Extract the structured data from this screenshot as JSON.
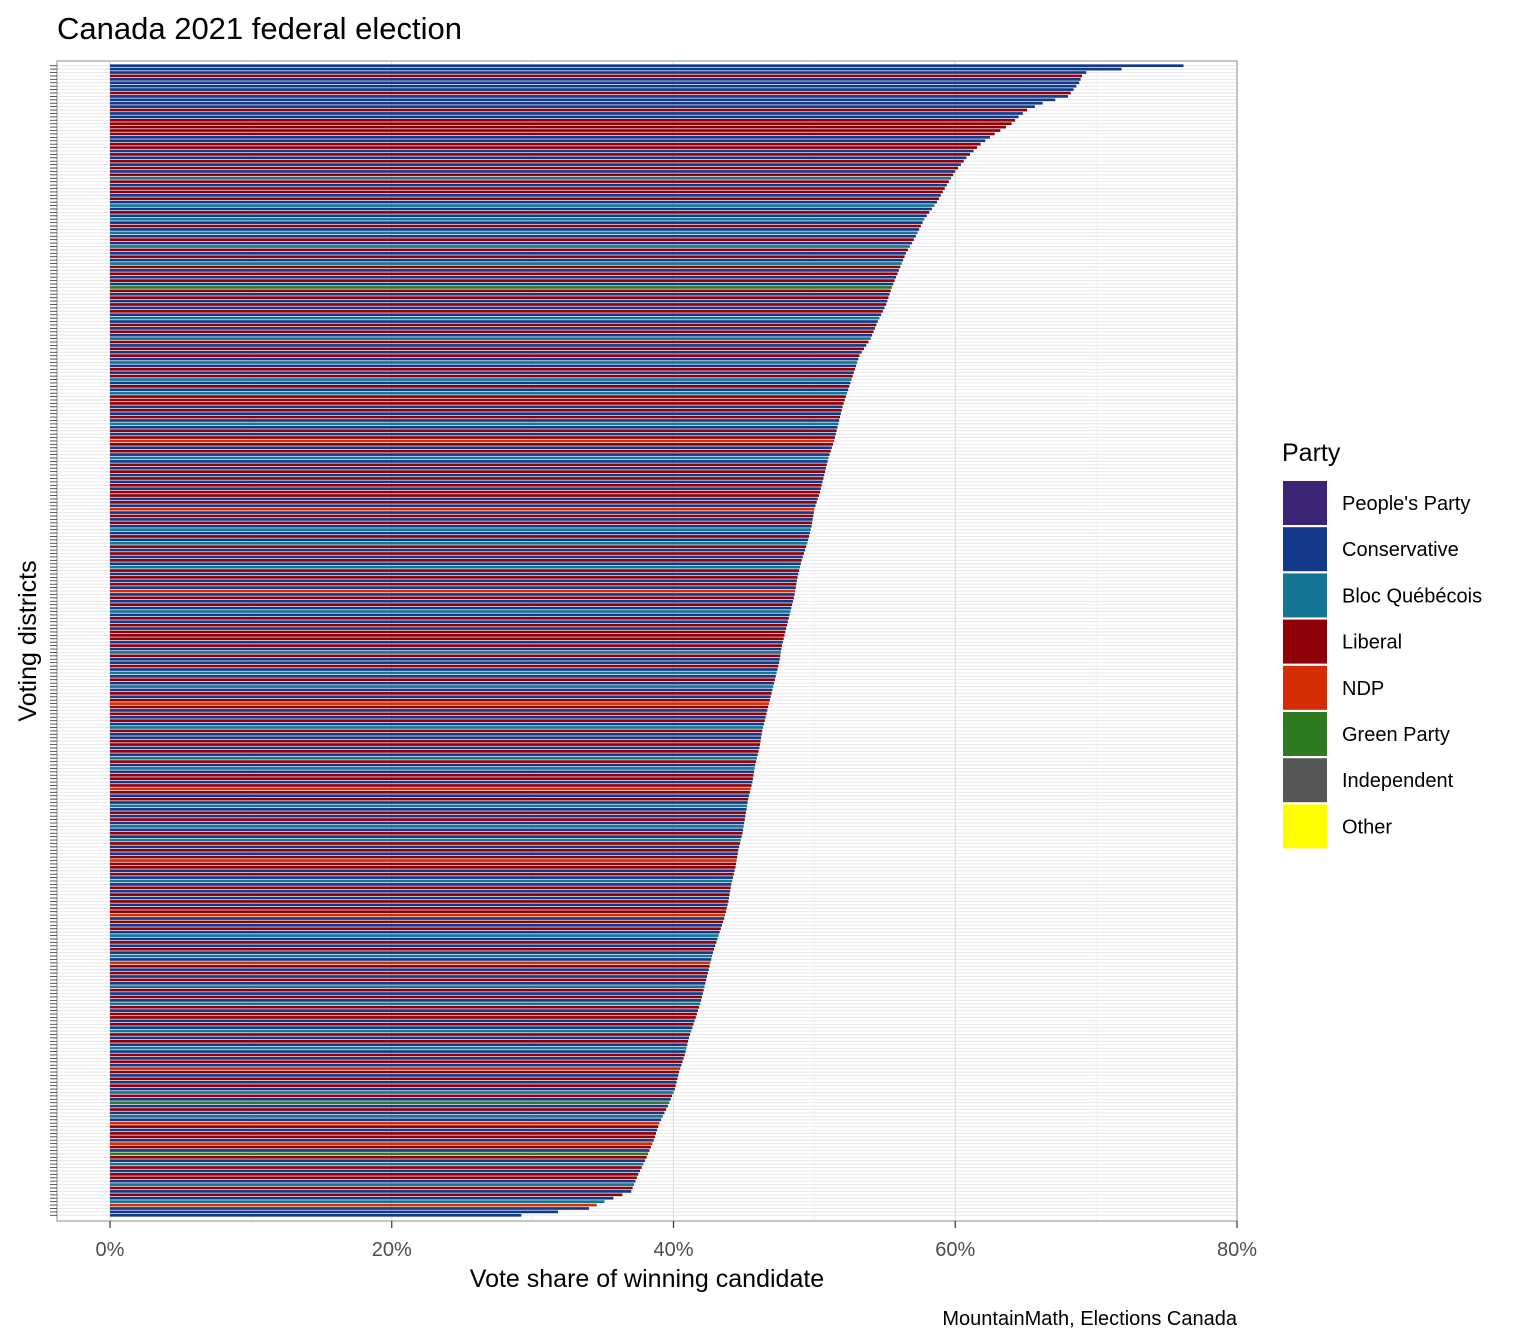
{
  "chart_data": {
    "type": "bar",
    "orientation": "horizontal",
    "sorted": "descending",
    "title": "Canada 2021 federal election",
    "xlabel": "Vote share of winning candidate",
    "ylabel": "Voting districts",
    "caption": "MountainMath, Elections Canada",
    "xlim": [
      0,
      0.8
    ],
    "x_ticks": [
      0,
      0.2,
      0.4,
      0.6,
      0.8
    ],
    "x_tick_labels": [
      "0%",
      "20%",
      "40%",
      "60%",
      "80%"
    ],
    "grid": true,
    "district_count": 338,
    "legend": {
      "title": "Party",
      "placement": "right",
      "entries": [
        {
          "key": "ppc",
          "label": "People's Party",
          "color": "#3e2477"
        },
        {
          "key": "con",
          "label": "Conservative",
          "color": "#12398a"
        },
        {
          "key": "bq",
          "label": "Bloc Québécois",
          "color": "#137694"
        },
        {
          "key": "lib",
          "label": "Liberal",
          "color": "#8f0009"
        },
        {
          "key": "ndp",
          "label": "NDP",
          "color": "#d42d05"
        },
        {
          "key": "grn",
          "label": "Green Party",
          "color": "#2d7a20"
        },
        {
          "key": "ind",
          "label": "Independent",
          "color": "#575757"
        },
        {
          "key": "oth",
          "label": "Other",
          "color": "#ffff00"
        }
      ]
    },
    "value_anchors": [
      [
        0,
        0.762
      ],
      [
        1,
        0.718
      ],
      [
        2,
        0.693
      ],
      [
        3,
        0.69
      ],
      [
        5,
        0.688
      ],
      [
        7,
        0.684
      ],
      [
        9,
        0.68
      ],
      [
        11,
        0.662
      ],
      [
        13,
        0.651
      ],
      [
        15,
        0.645
      ],
      [
        17,
        0.64
      ],
      [
        20,
        0.628
      ],
      [
        23,
        0.618
      ],
      [
        27,
        0.608
      ],
      [
        31,
        0.6
      ],
      [
        35,
        0.594
      ],
      [
        40,
        0.587
      ],
      [
        45,
        0.578
      ],
      [
        50,
        0.572
      ],
      [
        55,
        0.565
      ],
      [
        60,
        0.56
      ],
      [
        65,
        0.555
      ],
      [
        70,
        0.551
      ],
      [
        75,
        0.545
      ],
      [
        80,
        0.54
      ],
      [
        85,
        0.532
      ],
      [
        90,
        0.528
      ],
      [
        95,
        0.524
      ],
      [
        100,
        0.52
      ],
      [
        105,
        0.517
      ],
      [
        110,
        0.514
      ],
      [
        115,
        0.51
      ],
      [
        120,
        0.507
      ],
      [
        125,
        0.504
      ],
      [
        130,
        0.5
      ],
      [
        135,
        0.498
      ],
      [
        140,
        0.495
      ],
      [
        145,
        0.491
      ],
      [
        150,
        0.488
      ],
      [
        155,
        0.486
      ],
      [
        160,
        0.483
      ],
      [
        165,
        0.48
      ],
      [
        170,
        0.477
      ],
      [
        175,
        0.475
      ],
      [
        180,
        0.472
      ],
      [
        185,
        0.469
      ],
      [
        190,
        0.466
      ],
      [
        195,
        0.463
      ],
      [
        200,
        0.461
      ],
      [
        205,
        0.458
      ],
      [
        210,
        0.456
      ],
      [
        215,
        0.453
      ],
      [
        220,
        0.451
      ],
      [
        225,
        0.449
      ],
      [
        230,
        0.446
      ],
      [
        235,
        0.444
      ],
      [
        240,
        0.441
      ],
      [
        245,
        0.439
      ],
      [
        250,
        0.436
      ],
      [
        255,
        0.432
      ],
      [
        260,
        0.428
      ],
      [
        265,
        0.425
      ],
      [
        270,
        0.422
      ],
      [
        275,
        0.419
      ],
      [
        280,
        0.415
      ],
      [
        285,
        0.411
      ],
      [
        290,
        0.408
      ],
      [
        295,
        0.404
      ],
      [
        300,
        0.401
      ],
      [
        305,
        0.396
      ],
      [
        310,
        0.39
      ],
      [
        315,
        0.386
      ],
      [
        320,
        0.381
      ],
      [
        325,
        0.375
      ],
      [
        330,
        0.37
      ],
      [
        333,
        0.351
      ],
      [
        335,
        0.34
      ],
      [
        336,
        0.318
      ],
      [
        337,
        0.292
      ]
    ],
    "party_sequence": "ccclcccclcccclcclllllccllclclclclblcllclcbclcbclcbclcblclcblclclcglclclclcbclclcblclclcbclclbclcblllclclcbclclnlclcbclclclclcllclcnclclcbclcblclclcblclclcnclclcbclclclllclcblcclcbclcbclclnlclclcblccllclcblcbcllclnlclcbclclcbclcblclclnllclcbclclclcllnclclcbclclcbcnlclclcblclcblcllclcblclcbclclcnlclclcblcgclcbcnlcllcnlcglcblcllcblclcbn"
  }
}
